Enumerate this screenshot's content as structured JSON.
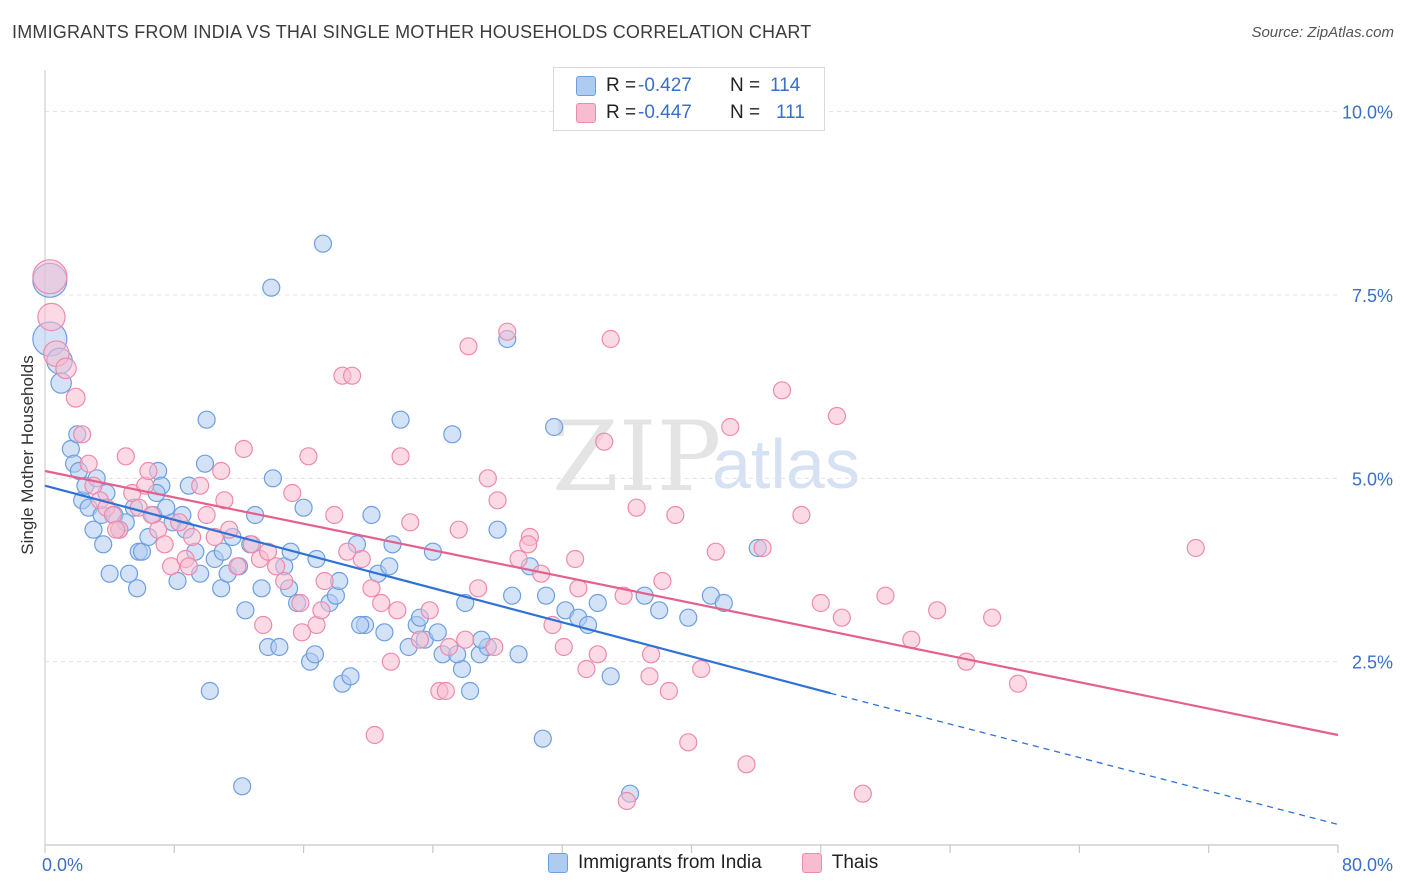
{
  "header": {
    "title": "IMMIGRANTS FROM INDIA VS THAI SINGLE MOTHER HOUSEHOLDS CORRELATION CHART",
    "source": "Source: ZipAtlas.com"
  },
  "legend": {
    "rows": [
      {
        "r_label": "R =",
        "r_value": "-0.427",
        "n_label": "N =",
        "n_value": "114"
      },
      {
        "r_label": "R =",
        "r_value": "-0.447",
        "n_label": "N =",
        "n_value": "111"
      }
    ]
  },
  "colors": {
    "blue_fill": "#aecbf0",
    "blue_stroke": "#6d9fe0",
    "blue_line": "#2f72d6",
    "pink_fill": "#f7bccf",
    "pink_stroke": "#ee8aac",
    "pink_line": "#e4608e",
    "grid": "#e3e3e3",
    "tick_text": "#3a6fc8"
  },
  "chart_data": {
    "type": "scatter",
    "title": "IMMIGRANTS FROM INDIA VS THAI SINGLE MOTHER HOUSEHOLDS CORRELATION CHART",
    "xlabel": "",
    "ylabel": "Single Mother Households",
    "xlim": [
      0,
      80
    ],
    "ylim": [
      0,
      10.5
    ],
    "x_tick_labels": [
      "0.0%",
      "80.0%"
    ],
    "y_ticks": [
      2.5,
      5.0,
      7.5,
      10.0
    ],
    "y_tick_labels": [
      "2.5%",
      "5.0%",
      "7.5%",
      "10.0%"
    ],
    "grid": "horizontal dashed",
    "legend_position": "top-center",
    "watermark": "ZIPatlas",
    "series": [
      {
        "name": "Immigrants from India",
        "color": "#aecbf0",
        "trend": {
          "x": [
            0,
            48.6
          ],
          "y": [
            4.9,
            2.07
          ],
          "dashed_extension_to": [
            80,
            0.28
          ]
        },
        "points": [
          [
            0.3,
            7.7,
            2
          ],
          [
            0.3,
            6.9,
            2
          ],
          [
            0.9,
            6.6,
            1.5
          ],
          [
            1.0,
            6.3,
            1.2
          ],
          [
            1.6,
            5.4,
            1
          ],
          [
            1.8,
            5.2,
            1
          ],
          [
            2.0,
            5.6,
            1
          ],
          [
            2.3,
            4.7,
            1
          ],
          [
            2.5,
            4.9,
            1
          ],
          [
            2.7,
            4.6,
            1
          ],
          [
            3.0,
            4.3,
            1
          ],
          [
            3.2,
            5.0,
            1
          ],
          [
            3.5,
            4.5,
            1
          ],
          [
            3.8,
            4.8,
            1
          ],
          [
            4.0,
            3.7,
            1
          ],
          [
            4.3,
            4.5,
            1
          ],
          [
            4.6,
            4.3,
            1
          ],
          [
            5.0,
            4.4,
            1
          ],
          [
            5.2,
            3.7,
            1
          ],
          [
            5.5,
            4.6,
            1
          ],
          [
            5.8,
            4.0,
            1
          ],
          [
            6.0,
            4.0,
            1
          ],
          [
            6.4,
            4.2,
            1
          ],
          [
            6.7,
            4.5,
            1
          ],
          [
            7.0,
            5.1,
            1
          ],
          [
            7.2,
            4.9,
            1
          ],
          [
            7.5,
            4.6,
            1
          ],
          [
            7.9,
            4.4,
            1
          ],
          [
            8.2,
            3.6,
            1
          ],
          [
            8.5,
            4.5,
            1
          ],
          [
            8.9,
            4.9,
            1
          ],
          [
            9.3,
            4.0,
            1
          ],
          [
            9.6,
            3.7,
            1
          ],
          [
            10.0,
            5.8,
            1
          ],
          [
            10.2,
            2.1,
            1
          ],
          [
            10.5,
            3.9,
            1
          ],
          [
            10.9,
            3.5,
            1
          ],
          [
            11.3,
            3.7,
            1
          ],
          [
            11.6,
            4.2,
            1
          ],
          [
            12.0,
            3.8,
            1
          ],
          [
            12.4,
            3.2,
            1
          ],
          [
            12.7,
            4.1,
            1
          ],
          [
            13.0,
            4.5,
            1
          ],
          [
            13.4,
            3.5,
            1
          ],
          [
            13.8,
            2.7,
            1
          ],
          [
            14.1,
            5.0,
            1
          ],
          [
            14.5,
            2.7,
            1
          ],
          [
            14.8,
            3.8,
            1
          ],
          [
            15.2,
            4.0,
            1
          ],
          [
            15.6,
            3.3,
            1
          ],
          [
            16.0,
            4.6,
            1
          ],
          [
            16.4,
            2.5,
            1
          ],
          [
            16.8,
            3.9,
            1
          ],
          [
            17.2,
            8.2,
            1
          ],
          [
            17.6,
            3.3,
            1
          ],
          [
            18.0,
            3.4,
            1
          ],
          [
            18.4,
            2.2,
            1
          ],
          [
            18.9,
            2.3,
            1
          ],
          [
            19.3,
            4.1,
            1
          ],
          [
            19.8,
            3.0,
            1
          ],
          [
            20.2,
            4.5,
            1
          ],
          [
            20.6,
            3.7,
            1
          ],
          [
            21.0,
            2.9,
            1
          ],
          [
            21.5,
            4.1,
            1
          ],
          [
            22.0,
            5.8,
            1
          ],
          [
            22.5,
            2.7,
            1
          ],
          [
            23.0,
            3.0,
            1
          ],
          [
            23.5,
            2.8,
            1
          ],
          [
            24.0,
            4.0,
            1
          ],
          [
            24.6,
            2.6,
            1
          ],
          [
            25.2,
            5.6,
            1
          ],
          [
            25.8,
            2.4,
            1
          ],
          [
            26.3,
            2.1,
            1
          ],
          [
            26.9,
            2.6,
            1
          ],
          [
            27.4,
            2.7,
            1
          ],
          [
            28.0,
            4.3,
            1
          ],
          [
            28.6,
            6.9,
            1
          ],
          [
            29.3,
            2.6,
            1
          ],
          [
            30.0,
            3.8,
            1
          ],
          [
            30.8,
            1.45,
            1
          ],
          [
            31.5,
            5.7,
            1
          ],
          [
            32.2,
            3.2,
            1
          ],
          [
            33.0,
            3.1,
            1
          ],
          [
            34.2,
            3.3,
            1
          ],
          [
            35.0,
            2.3,
            1
          ],
          [
            36.2,
            0.7,
            1
          ],
          [
            37.1,
            3.4,
            1
          ],
          [
            38.0,
            3.2,
            1
          ],
          [
            39.8,
            3.1,
            1
          ],
          [
            41.2,
            3.4,
            1
          ],
          [
            42.0,
            3.3,
            1
          ],
          [
            44.1,
            4.05,
            1
          ],
          [
            2.1,
            5.1,
            1
          ],
          [
            3.6,
            4.1,
            1
          ],
          [
            5.7,
            3.5,
            1
          ],
          [
            6.9,
            4.8,
            1
          ],
          [
            8.7,
            4.3,
            1
          ],
          [
            9.9,
            5.2,
            1
          ],
          [
            11.0,
            4.0,
            1
          ],
          [
            12.2,
            0.8,
            1
          ],
          [
            14.0,
            7.6,
            1
          ],
          [
            15.1,
            3.5,
            1
          ],
          [
            16.7,
            2.6,
            1
          ],
          [
            18.2,
            3.6,
            1
          ],
          [
            19.5,
            3.0,
            1
          ],
          [
            21.3,
            3.8,
            1
          ],
          [
            23.2,
            3.1,
            1
          ],
          [
            24.3,
            2.9,
            1
          ],
          [
            25.5,
            2.6,
            1
          ],
          [
            26.0,
            3.3,
            1
          ],
          [
            27.0,
            2.8,
            1
          ],
          [
            28.9,
            3.4,
            1
          ],
          [
            31.0,
            3.4,
            1
          ],
          [
            33.6,
            3.0,
            1
          ]
        ]
      },
      {
        "name": "Thais",
        "color": "#f7bccf",
        "trend": {
          "x": [
            0,
            80
          ],
          "y": [
            5.1,
            1.5
          ]
        },
        "points": [
          [
            0.3,
            7.75,
            2
          ],
          [
            0.4,
            7.2,
            1.6
          ],
          [
            0.7,
            6.7,
            1.5
          ],
          [
            1.3,
            6.5,
            1.2
          ],
          [
            1.9,
            6.1,
            1.1
          ],
          [
            2.3,
            5.6,
            1
          ],
          [
            2.7,
            5.2,
            1
          ],
          [
            3.0,
            4.9,
            1
          ],
          [
            3.4,
            4.7,
            1
          ],
          [
            3.8,
            4.6,
            1
          ],
          [
            4.2,
            4.5,
            1
          ],
          [
            4.6,
            4.3,
            1
          ],
          [
            5.0,
            5.3,
            1
          ],
          [
            5.4,
            4.8,
            1
          ],
          [
            5.8,
            4.6,
            1
          ],
          [
            6.2,
            4.9,
            1
          ],
          [
            6.6,
            4.5,
            1
          ],
          [
            7.0,
            4.3,
            1
          ],
          [
            7.4,
            4.1,
            1
          ],
          [
            7.8,
            3.8,
            1
          ],
          [
            8.3,
            4.4,
            1
          ],
          [
            8.7,
            3.9,
            1
          ],
          [
            9.1,
            4.2,
            1
          ],
          [
            9.6,
            4.9,
            1
          ],
          [
            10.0,
            4.5,
            1
          ],
          [
            10.5,
            4.2,
            1
          ],
          [
            10.9,
            5.1,
            1
          ],
          [
            11.4,
            4.3,
            1
          ],
          [
            11.9,
            3.8,
            1
          ],
          [
            12.3,
            5.4,
            1
          ],
          [
            12.8,
            4.1,
            1
          ],
          [
            13.3,
            3.9,
            1
          ],
          [
            13.8,
            4.0,
            1
          ],
          [
            14.3,
            3.8,
            1
          ],
          [
            14.8,
            3.6,
            1
          ],
          [
            15.3,
            4.8,
            1
          ],
          [
            15.8,
            3.3,
            1
          ],
          [
            16.3,
            5.3,
            1
          ],
          [
            16.8,
            3.0,
            1
          ],
          [
            17.3,
            3.6,
            1
          ],
          [
            17.9,
            4.5,
            1
          ],
          [
            18.4,
            6.4,
            1
          ],
          [
            19.0,
            6.4,
            1
          ],
          [
            19.6,
            3.9,
            1
          ],
          [
            20.2,
            3.5,
            1
          ],
          [
            20.8,
            3.3,
            1
          ],
          [
            21.4,
            2.5,
            1
          ],
          [
            22.0,
            5.3,
            1
          ],
          [
            22.6,
            4.4,
            1
          ],
          [
            23.2,
            2.8,
            1
          ],
          [
            23.8,
            3.2,
            1
          ],
          [
            24.4,
            2.1,
            1
          ],
          [
            25.0,
            2.7,
            1
          ],
          [
            25.6,
            4.3,
            1
          ],
          [
            26.2,
            6.8,
            1
          ],
          [
            26.8,
            3.5,
            1
          ],
          [
            27.4,
            5.0,
            1
          ],
          [
            28.0,
            4.7,
            1
          ],
          [
            28.6,
            7.0,
            1
          ],
          [
            29.3,
            3.9,
            1
          ],
          [
            30.0,
            4.2,
            1
          ],
          [
            30.7,
            3.7,
            1
          ],
          [
            31.4,
            3.0,
            1
          ],
          [
            32.1,
            2.7,
            1
          ],
          [
            32.8,
            3.9,
            1
          ],
          [
            33.5,
            2.4,
            1
          ],
          [
            34.2,
            2.6,
            1
          ],
          [
            35.0,
            6.9,
            1
          ],
          [
            35.8,
            3.4,
            1
          ],
          [
            36.6,
            4.6,
            1
          ],
          [
            37.4,
            2.3,
            1
          ],
          [
            38.2,
            3.6,
            1
          ],
          [
            39.0,
            4.5,
            1
          ],
          [
            39.8,
            1.4,
            1
          ],
          [
            40.6,
            2.4,
            1
          ],
          [
            41.5,
            4.0,
            1
          ],
          [
            42.4,
            5.7,
            1
          ],
          [
            43.4,
            1.1,
            1
          ],
          [
            44.4,
            4.05,
            1
          ],
          [
            45.6,
            6.2,
            1
          ],
          [
            46.8,
            4.5,
            1
          ],
          [
            48.0,
            3.3,
            1
          ],
          [
            49.3,
            3.1,
            1
          ],
          [
            50.6,
            0.7,
            1
          ],
          [
            52.0,
            3.4,
            1
          ],
          [
            53.6,
            2.8,
            1
          ],
          [
            55.2,
            3.2,
            1
          ],
          [
            57.0,
            2.5,
            1
          ],
          [
            58.6,
            3.1,
            1
          ],
          [
            60.2,
            2.2,
            1
          ],
          [
            71.2,
            4.05,
            1
          ],
          [
            49.0,
            5.85,
            1
          ],
          [
            37.5,
            2.6,
            1
          ],
          [
            33.0,
            3.5,
            1
          ],
          [
            27.8,
            2.7,
            1
          ],
          [
            24.8,
            2.1,
            1
          ],
          [
            21.8,
            3.2,
            1
          ],
          [
            18.7,
            4.0,
            1
          ],
          [
            15.9,
            2.9,
            1
          ],
          [
            13.5,
            3.0,
            1
          ],
          [
            11.1,
            4.7,
            1
          ],
          [
            8.9,
            3.8,
            1
          ],
          [
            6.4,
            5.1,
            1
          ],
          [
            4.4,
            4.3,
            1
          ],
          [
            20.4,
            1.5,
            1
          ],
          [
            26.0,
            2.8,
            1
          ],
          [
            29.9,
            4.1,
            1
          ],
          [
            34.6,
            5.5,
            1
          ],
          [
            36.0,
            0.6,
            1
          ],
          [
            38.6,
            2.1,
            1
          ],
          [
            17.1,
            3.2,
            1
          ]
        ]
      }
    ]
  }
}
